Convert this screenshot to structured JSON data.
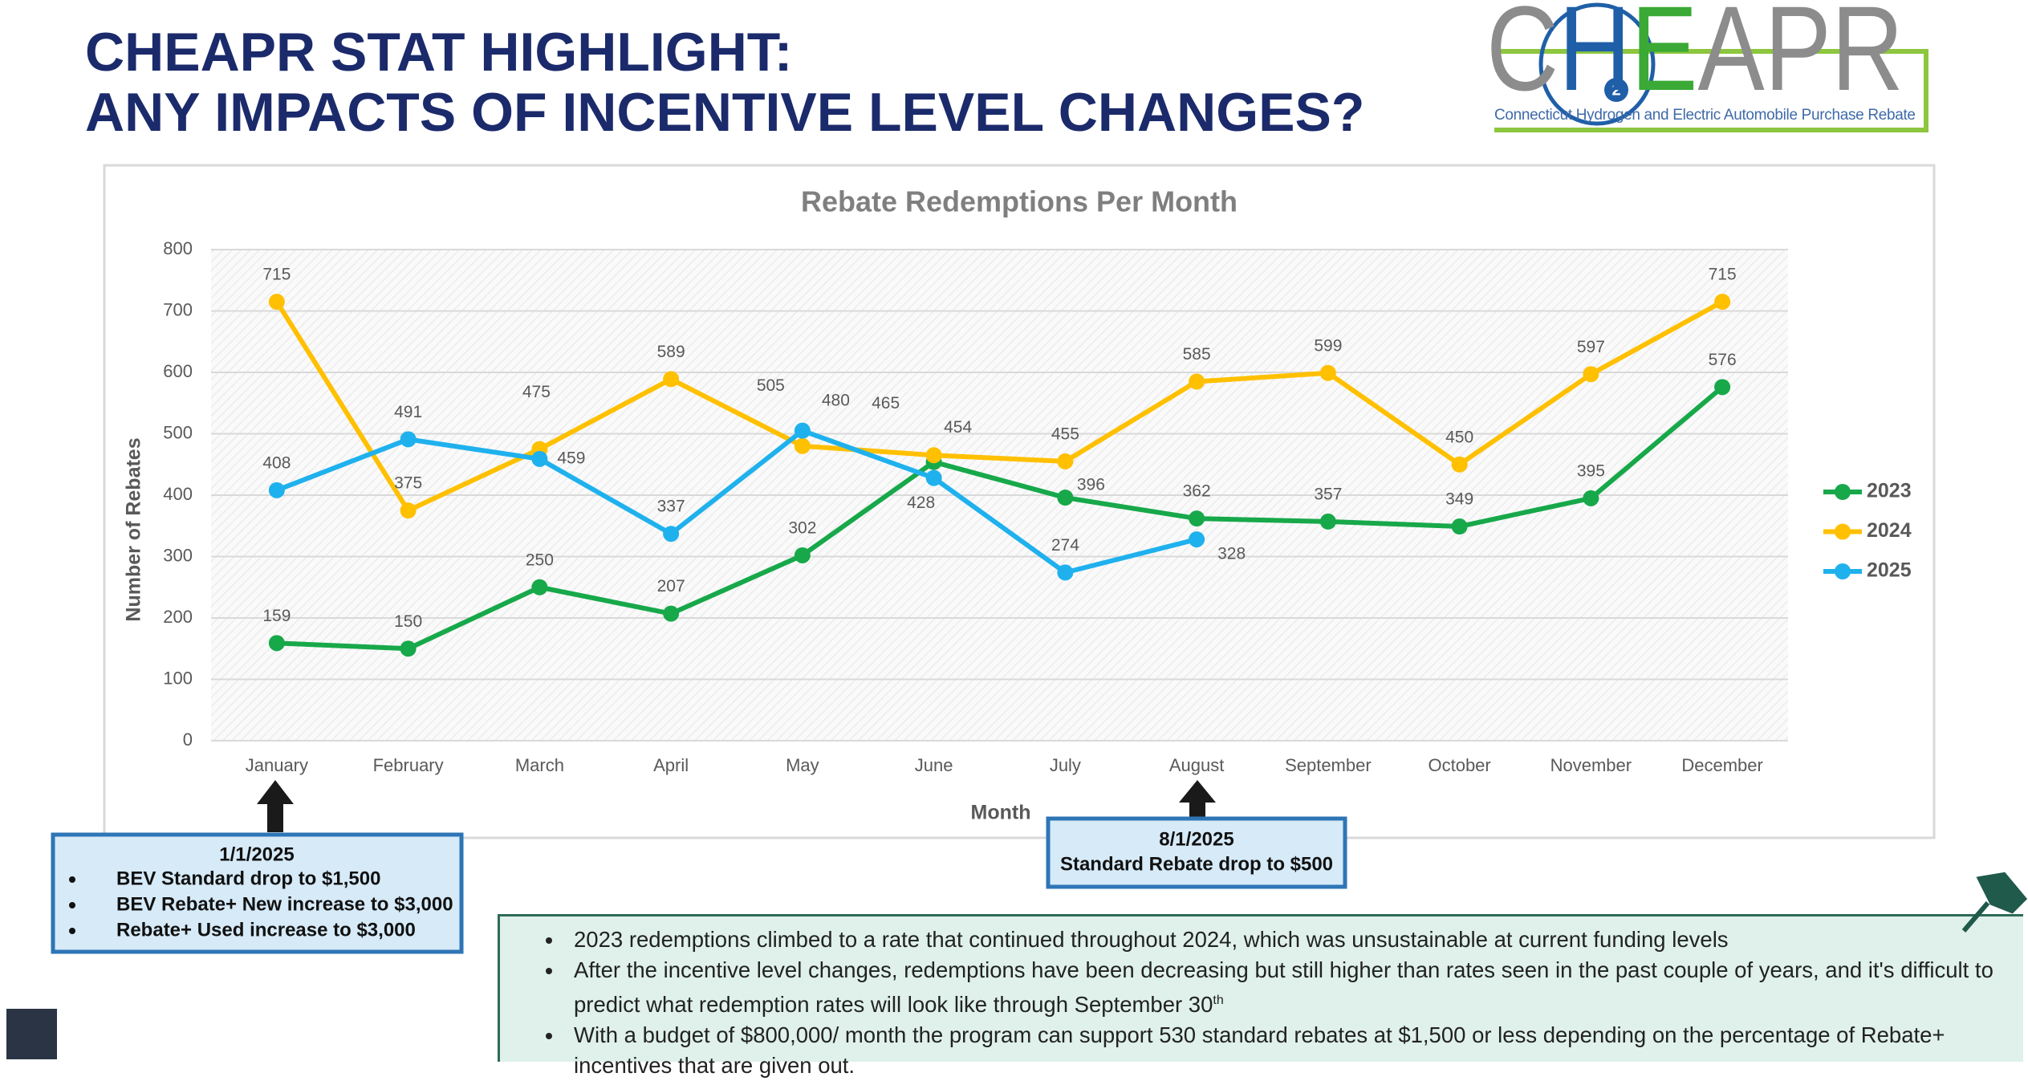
{
  "slide": {
    "title": [
      "CHEAPR STAT HIGHLIGHT:",
      "ANY IMPACTS OF INCENTIVE LEVEL CHANGES?"
    ],
    "logo": {
      "parts": [
        "C",
        "H",
        "E",
        "APR"
      ],
      "badge": "2",
      "tagline": "Connecticut Hydrogen and Electric Automobile Purchase Rebate"
    },
    "callouts": [
      {
        "heading": "1/1/2025",
        "bullets": [
          "BEV Standard drop to $1,500",
          "BEV Rebate+ New increase to $3,000",
          "Rebate+ Used increase to $3,000"
        ]
      },
      {
        "heading": "8/1/2025",
        "body": "Standard Rebate drop to $500"
      }
    ],
    "notes": [
      {
        "text": "2023 redemptions climbed to a rate that continued throughout 2024, which was unsustainable at current funding levels"
      },
      {
        "text": "After the incentive level changes, redemptions have been decreasing but still higher than rates seen in the past couple of years, and it's difficult to predict what redemption rates will look like through September 30",
        "sup": "th"
      },
      {
        "text": "With a budget of $800,000/ month the program can support 530 standard rebates at $1,500 or less depending on the percentage of Rebate+ incentives that are given out."
      }
    ]
  },
  "chart_data": {
    "type": "line",
    "title": "Rebate Redemptions Per Month",
    "x_label": "Month",
    "y_label": "Number of Rebates",
    "categories": [
      "January",
      "February",
      "March",
      "April",
      "May",
      "June",
      "July",
      "August",
      "September",
      "October",
      "November",
      "December"
    ],
    "series": [
      {
        "name": "2023",
        "color": "#17a84a",
        "values": [
          159,
          150,
          250,
          207,
          302,
          454,
          396,
          362,
          357,
          349,
          395,
          576
        ]
      },
      {
        "name": "2024",
        "color": "#ffc000",
        "values": [
          715,
          375,
          475,
          589,
          480,
          465,
          455,
          585,
          599,
          450,
          597,
          715
        ]
      },
      {
        "name": "2025",
        "color": "#1fb1ed",
        "values": [
          408,
          491,
          459,
          337,
          505,
          428,
          274,
          328,
          null,
          null,
          null,
          null
        ]
      }
    ],
    "ylim": [
      0,
      800
    ],
    "yticks": [
      0,
      100,
      200,
      300,
      400,
      500,
      600,
      700,
      800
    ],
    "grid": true,
    "legend": "right"
  }
}
